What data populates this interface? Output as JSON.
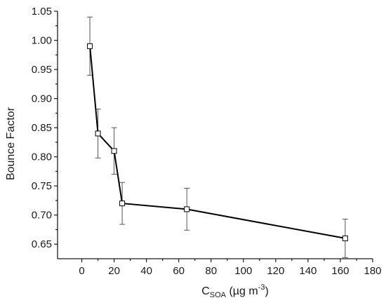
{
  "chart_data": {
    "type": "line",
    "xlabel": {
      "main": "C",
      "sub": "SOA",
      "units_pre": " (µg m",
      "units_sup": "-3",
      "units_post": ")"
    },
    "ylabel": "Bounce Factor",
    "xlim": [
      -15,
      180
    ],
    "ylim": [
      0.625,
      1.05
    ],
    "x_ticks": [
      0,
      20,
      40,
      60,
      80,
      100,
      120,
      140,
      160,
      180
    ],
    "y_ticks": [
      0.65,
      0.7,
      0.75,
      0.8,
      0.85,
      0.9,
      0.95,
      1.0,
      1.05
    ],
    "grid": false,
    "legend": "none",
    "marker": "open-square",
    "series": [
      {
        "x": [
          5,
          10,
          20,
          25,
          65,
          163
        ],
        "y": [
          0.99,
          0.84,
          0.81,
          0.72,
          0.71,
          0.66
        ],
        "err": [
          0.05,
          0.042,
          0.04,
          0.036,
          0.036,
          0.033
        ]
      }
    ],
    "colors": {
      "line": "#000000",
      "marker_fill": "#ffffff",
      "error_bar": "#555555"
    }
  }
}
